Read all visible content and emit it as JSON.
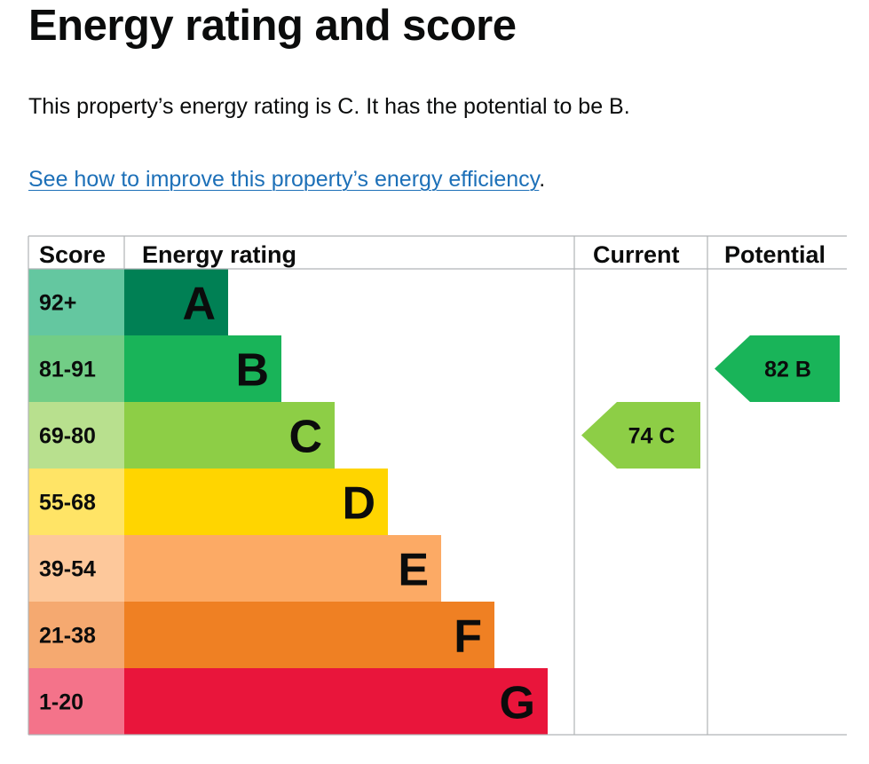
{
  "page": {
    "title": "Energy rating and score",
    "summary": "This property’s energy rating is C. It has the potential to be B.",
    "improve_link": "See how to improve this property’s energy efficiency",
    "improve_suffix": "."
  },
  "table": {
    "headers": {
      "score": "Score",
      "rating": "Energy rating",
      "current": "Current",
      "potential": "Potential"
    }
  },
  "chart_data": {
    "type": "table",
    "bands": [
      {
        "letter": "A",
        "range": "92+",
        "color": "#008054",
        "score_color": "#64c7a0"
      },
      {
        "letter": "B",
        "range": "81-91",
        "color": "#19b459",
        "score_color": "#72cd86"
      },
      {
        "letter": "C",
        "range": "69-80",
        "color": "#8dce46",
        "score_color": "#b8e08e"
      },
      {
        "letter": "D",
        "range": "55-68",
        "color": "#ffd500",
        "score_color": "#ffe466"
      },
      {
        "letter": "E",
        "range": "39-54",
        "color": "#fcaa65",
        "score_color": "#fdc89b"
      },
      {
        "letter": "F",
        "range": "21-38",
        "color": "#ef8023",
        "score_color": "#f5a970"
      },
      {
        "letter": "G",
        "range": "1-20",
        "color": "#e9153b",
        "score_color": "#f4738a"
      }
    ],
    "current": {
      "score": 74,
      "letter": "C",
      "label": "74  C",
      "color": "#8dce46"
    },
    "potential": {
      "score": 82,
      "letter": "B",
      "label": "82  B",
      "color": "#19b459"
    }
  }
}
